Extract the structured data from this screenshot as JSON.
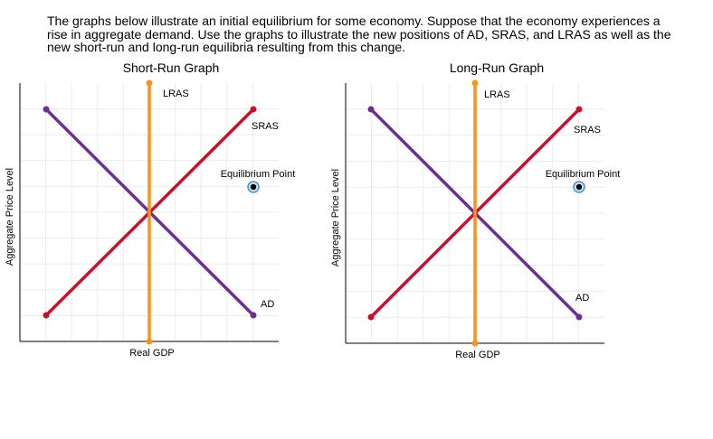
{
  "instructions": [
    "The graphs below illustrate an initial equilibrium for some economy. Suppose that the economy experiences a",
    "rise in aggregate demand. Use the graphs to illustrate the new positions of AD, SRAS, and LRAS as well as the",
    "new short-run and long-run equilibria resulting from this change."
  ],
  "graphs": [
    {
      "title": "Short-Run Graph",
      "x_axis_label": "Real GDP",
      "y_axis_label": "Aggregate Price Level",
      "lras_label": "LRAS",
      "sras_label": "SRAS",
      "ad_label": "AD",
      "equilibrium_label": "Equilibrium Point"
    },
    {
      "title": "Long-Run Graph",
      "x_axis_label": "Real GDP",
      "y_axis_label": "Aggregate Price Level",
      "lras_label": "LRAS",
      "sras_label": "SRAS",
      "ad_label": "AD",
      "equilibrium_label": "Equilibrium Point"
    }
  ]
}
